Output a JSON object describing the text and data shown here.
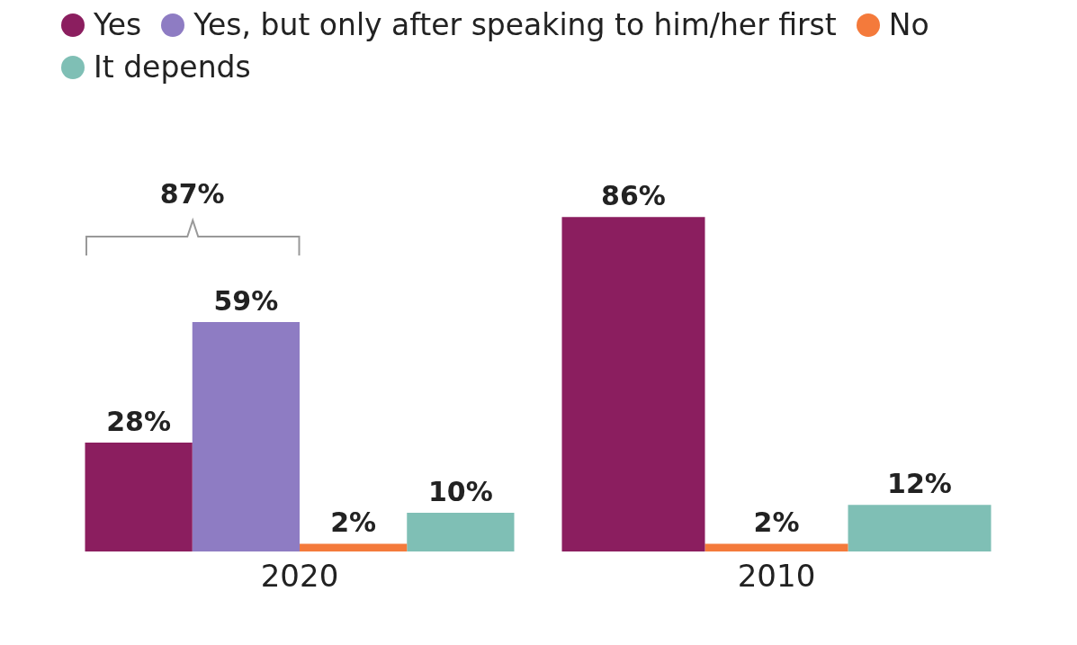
{
  "chart_data": {
    "type": "bar",
    "categories": [
      "2020",
      "2010"
    ],
    "series": [
      {
        "name": "Yes",
        "color": "#8b1e5f",
        "values": [
          28,
          86
        ],
        "value_labels": [
          "28%",
          "86%"
        ]
      },
      {
        "name": "Yes, but only after speaking to him/her first",
        "color": "#8e7cc3",
        "values": [
          59,
          null
        ],
        "value_labels": [
          "59%",
          null
        ]
      },
      {
        "name": "No",
        "color": "#f47a3b",
        "values": [
          2,
          2
        ],
        "value_labels": [
          "2%",
          "2%"
        ]
      },
      {
        "name": "It depends",
        "color": "#7fbfb5",
        "values": [
          10,
          12
        ],
        "value_labels": [
          "10%",
          "12%"
        ]
      }
    ],
    "grid": false,
    "legend": "top left",
    "marker": "circle",
    "annotations": [
      "87%"
    ]
  }
}
